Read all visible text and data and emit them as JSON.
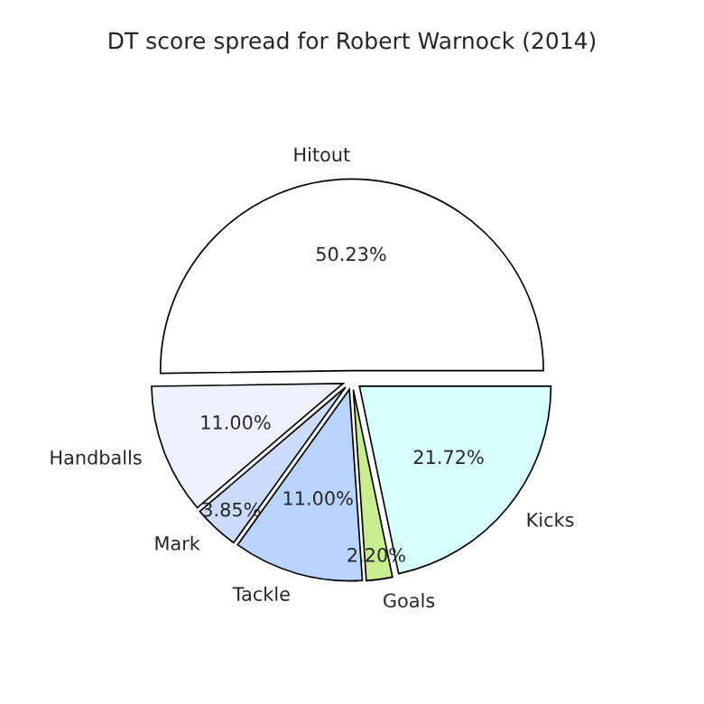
{
  "chart_data": {
    "type": "pie",
    "title": "DT score spread for Robert Warnock (2014)",
    "categories": [
      "Hitout",
      "Handballs",
      "Mark",
      "Tackle",
      "Goals",
      "Kicks"
    ],
    "values": [
      50.23,
      11.0,
      3.85,
      11.0,
      2.2,
      21.72
    ],
    "value_labels": [
      "50.23%",
      "11.00%",
      "3.85%",
      "11.00%",
      "2.20%",
      "21.72%"
    ],
    "colors": [
      "#ffffff",
      "#eef2ff",
      "#ccdcff",
      "#b8d4ff",
      "#c8ec90",
      "#d8ffff"
    ]
  }
}
